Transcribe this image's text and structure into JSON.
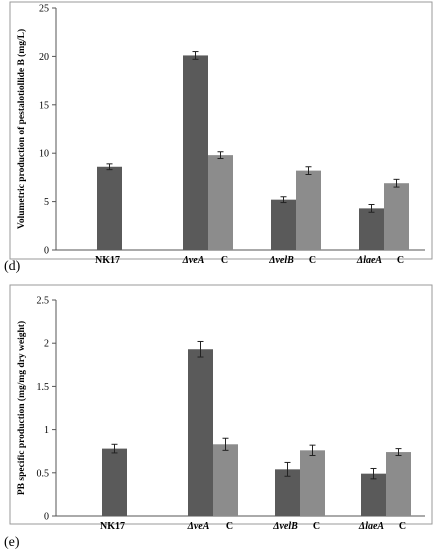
{
  "colors": {
    "dark_bar": "#5a5a5a",
    "light_bar": "#8c8c8c"
  },
  "chart_data": [
    {
      "panel": "(d)",
      "type": "bar",
      "ylabel": "Volumetric production of pestalotiollide B (mg/L)",
      "ylim": [
        0,
        25
      ],
      "yticks": [
        "0",
        "5",
        "10",
        "15",
        "20",
        "25"
      ],
      "grid": false,
      "legend": "none",
      "groups": [
        {
          "label": "NK17",
          "bars": [
            {
              "value": 8.6,
              "err": 0.3,
              "shade": "dark"
            }
          ]
        },
        {
          "label": "ΔveA",
          "bars": [
            {
              "value": 20.1,
              "err": 0.4,
              "shade": "dark"
            },
            {
              "value": 9.8,
              "err": 0.35,
              "shade": "light"
            }
          ]
        },
        {
          "label": "ΔvelB",
          "bars": [
            {
              "value": 5.2,
              "err": 0.3,
              "shade": "dark"
            },
            {
              "value": 8.2,
              "err": 0.4,
              "shade": "light"
            }
          ]
        },
        {
          "label": "ΔlaeA",
          "bars": [
            {
              "value": 4.3,
              "err": 0.4,
              "shade": "dark"
            },
            {
              "value": 6.9,
              "err": 0.4,
              "shade": "light"
            }
          ]
        }
      ],
      "complement_label": "C"
    },
    {
      "panel": "(e)",
      "type": "bar",
      "ylabel": "PB specific production (mg/mg dry weight)",
      "ylim": [
        0,
        2.5
      ],
      "yticks": [
        "0",
        "0.5",
        "1",
        "1.5",
        "2",
        "2.5"
      ],
      "grid": false,
      "legend": "none",
      "groups": [
        {
          "label": "NK17",
          "bars": [
            {
              "value": 0.78,
              "err": 0.05,
              "shade": "dark"
            }
          ]
        },
        {
          "label": "ΔveA",
          "bars": [
            {
              "value": 1.93,
              "err": 0.09,
              "shade": "dark"
            },
            {
              "value": 0.83,
              "err": 0.07,
              "shade": "light"
            }
          ]
        },
        {
          "label": "ΔvelB",
          "bars": [
            {
              "value": 0.54,
              "err": 0.08,
              "shade": "dark"
            },
            {
              "value": 0.76,
              "err": 0.06,
              "shade": "light"
            }
          ]
        },
        {
          "label": "ΔlaeA",
          "bars": [
            {
              "value": 0.49,
              "err": 0.06,
              "shade": "dark"
            },
            {
              "value": 0.74,
              "err": 0.04,
              "shade": "light"
            }
          ]
        }
      ],
      "complement_label": "C"
    }
  ]
}
